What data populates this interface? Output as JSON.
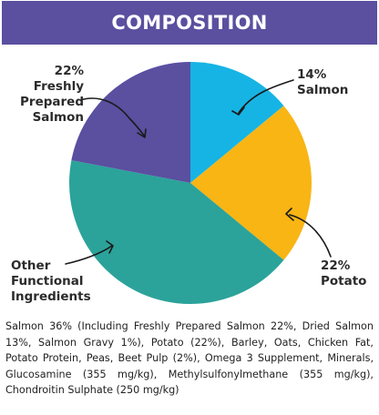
{
  "header": {
    "title": "COMPOSITION"
  },
  "colors": {
    "header_bg": "#5b4fa0",
    "salmon": "#16b4e4",
    "potato": "#f8b514",
    "other": "#2ba39a",
    "fresh_salmon": "#5b4fa0",
    "arrow": "#1a1a1a"
  },
  "chart_data": {
    "type": "pie",
    "title": "COMPOSITION",
    "slices": [
      {
        "label_pct": "14%",
        "label_name": "Salmon",
        "value": 14,
        "color": "#16b4e4"
      },
      {
        "label_pct": "22%",
        "label_name": "Potato",
        "value": 22,
        "color": "#f8b514"
      },
      {
        "label_pct": "",
        "label_name": "Other Functional Ingredients",
        "value": 42,
        "color": "#2ba39a"
      },
      {
        "label_pct": "22%",
        "label_name": "Freshly Prepared Salmon",
        "value": 22,
        "color": "#5b4fa0"
      }
    ]
  },
  "labels": {
    "salmon": {
      "line1": "14%",
      "line2": "Salmon"
    },
    "potato": {
      "line1": "22%",
      "line2": "Potato"
    },
    "other": {
      "line1": "Other",
      "line2": "Functional",
      "line3": "Ingredients"
    },
    "fresh_salmon": {
      "line1": "22%",
      "line2": "Freshly",
      "line3": "Prepared",
      "line4": "Salmon"
    }
  },
  "ingredients_text": "Salmon 36% (Including Freshly Prepared Salmon 22%, Dried Salmon 13%, Salmon Gravy 1%), Potato (22%), Barley, Oats, Chicken Fat, Potato Protein, Peas, Beet Pulp (2%), Omega 3 Supplement, Minerals, Glucosamine (355 mg/kg), Methylsulfonylmethane (355 mg/kg), Chondroitin Sulphate (250 mg/kg)"
}
